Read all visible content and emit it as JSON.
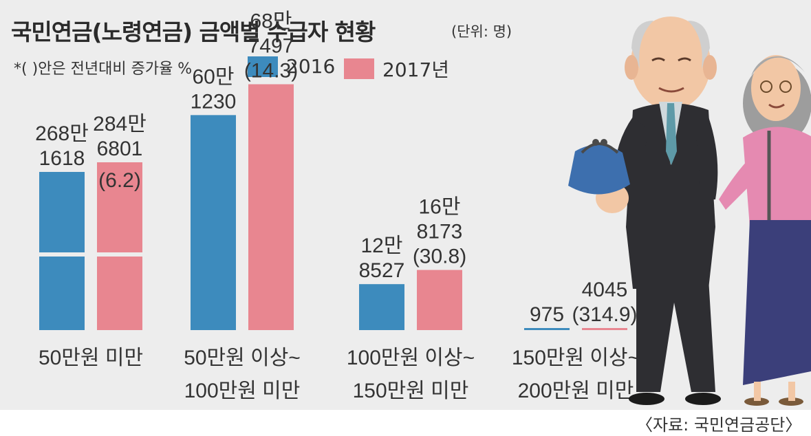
{
  "title": "국민연금(노령연금) 금액별 수급자 현황",
  "unit": "(단위: 명)",
  "note": "*( )안은 전년대비 증가율 %",
  "source": "〈자료: 국민연금공단〉",
  "colors": {
    "2016": "#3d8bbd",
    "2017": "#e88690",
    "background": "#ededed"
  },
  "illustration": "elderly-couple-with-purse-illustration",
  "chart_data": {
    "type": "bar",
    "categories": [
      [
        "50만원 미만"
      ],
      [
        "50만원 이상~",
        "100만원 미만"
      ],
      [
        "100만원 이상~",
        "150만원 미만"
      ],
      [
        "150만원 이상~",
        "200만원 미만"
      ]
    ],
    "series": [
      {
        "name": "2016",
        "values": [
          2681618,
          601230,
          128527,
          975
        ],
        "labels": [
          [
            "268만",
            "1618"
          ],
          [
            "60만",
            "1230"
          ],
          [
            "12만",
            "8527"
          ],
          [
            "975"
          ]
        ]
      },
      {
        "name": "2017년",
        "values": [
          2846801,
          687497,
          168173,
          4045
        ],
        "labels": [
          [
            "284만",
            "6801",
            "(6.2)"
          ],
          [
            "68만",
            "7497",
            "(14.3)"
          ],
          [
            "16만",
            "8173",
            "(30.8)"
          ],
          [
            "4045",
            "(314.9)"
          ]
        ]
      }
    ],
    "growth_pct": [
      6.2,
      14.3,
      30.8,
      314.9
    ],
    "broken_axis_first_group": true,
    "legend": "top-left",
    "grid": false
  }
}
